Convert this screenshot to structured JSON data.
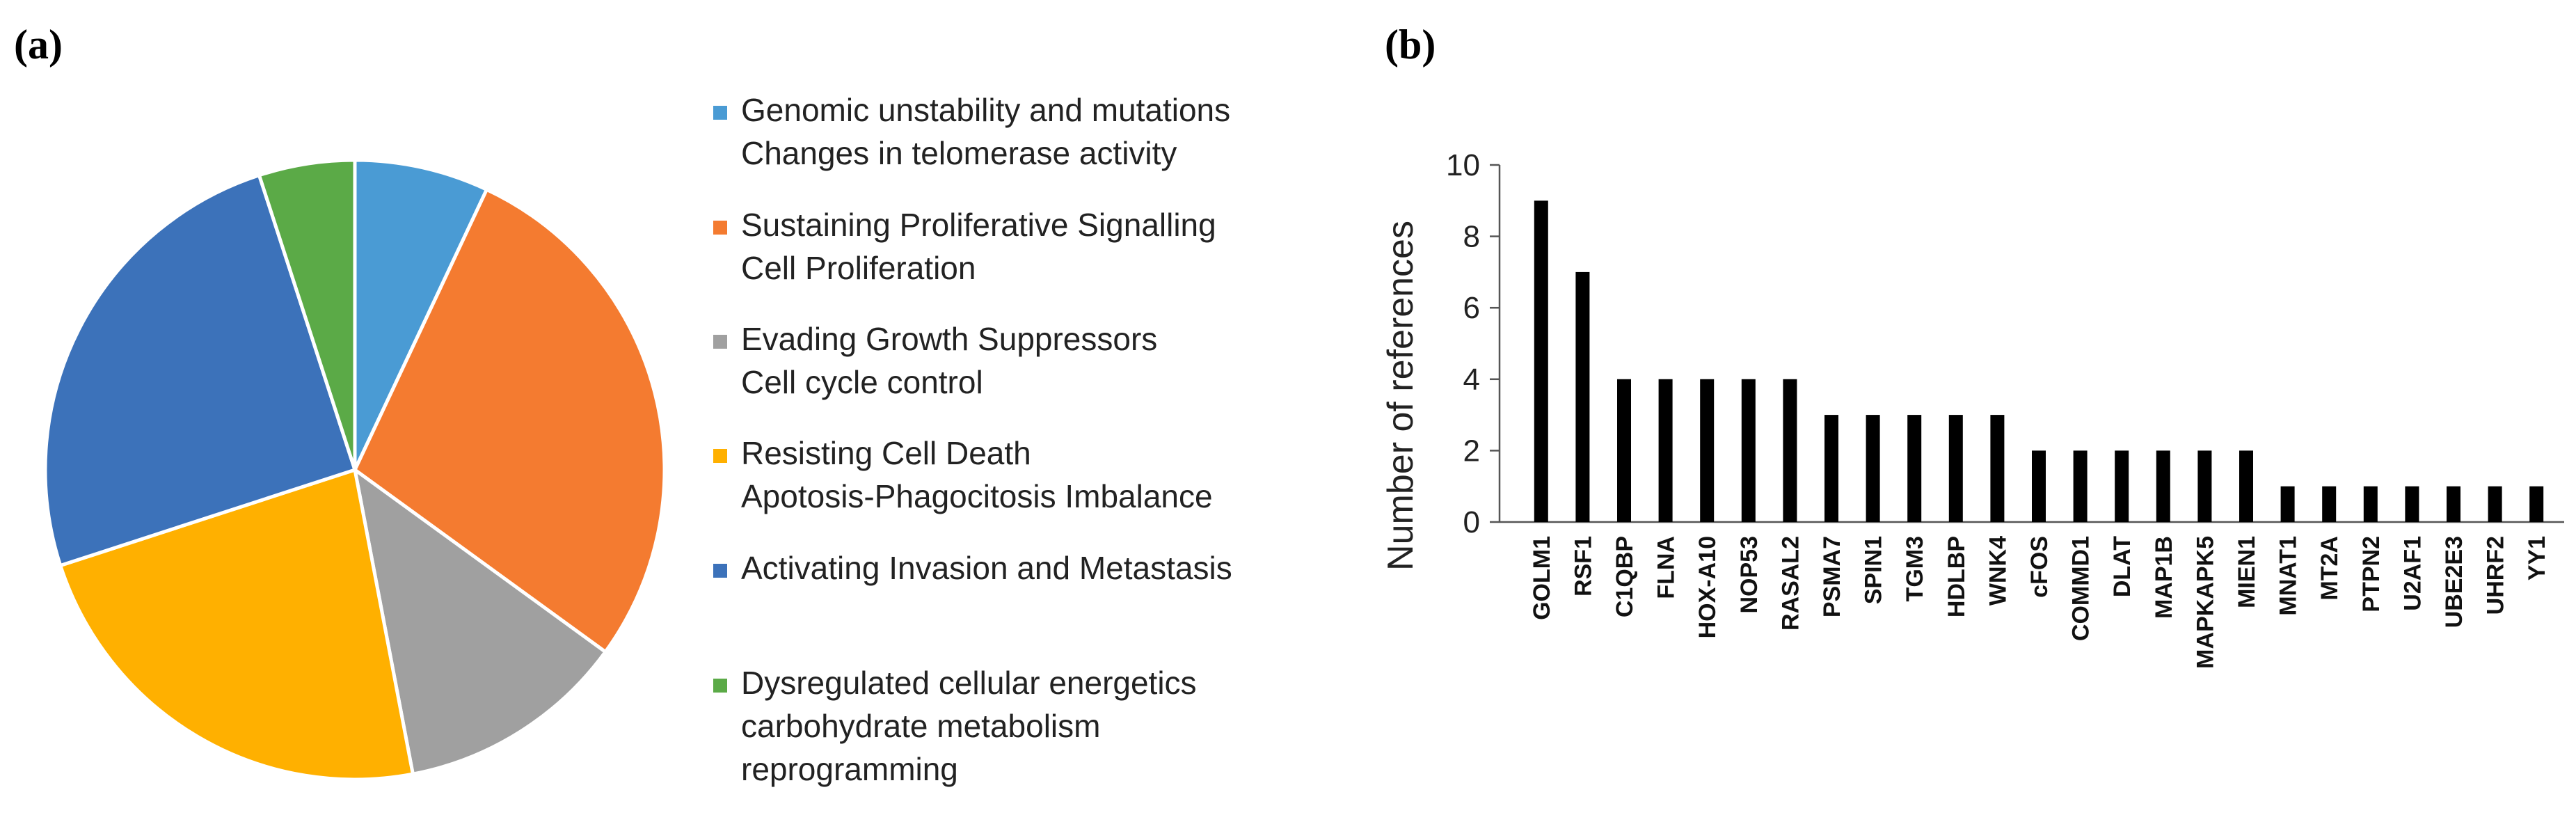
{
  "panels": {
    "a": "(a)",
    "b": "(b)"
  },
  "chart_data": [
    {
      "type": "pie",
      "panel": "(a)",
      "start_angle_deg": 0,
      "direction": "clockwise",
      "slices": [
        {
          "label_lines": [
            "Genomic unstability and mutations",
            "Changes in telomerase activity"
          ],
          "value": 7,
          "color": "#4A9BD4"
        },
        {
          "label_lines": [
            "Sustaining Proliferative Signalling",
            "Cell Proliferation"
          ],
          "value": 28,
          "color": "#F47B30"
        },
        {
          "label_lines": [
            "Evading Growth Suppressors",
            "Cell cycle control"
          ],
          "value": 12,
          "color": "#A0A0A0"
        },
        {
          "label_lines": [
            "Resisting Cell Death",
            "Apotosis-Phagocitosis Imbalance"
          ],
          "value": 23,
          "color": "#FFB000"
        },
        {
          "label_lines": [
            "Activating Invasion and Metastasis"
          ],
          "value": 25,
          "color": "#3C72BA"
        },
        {
          "label_lines": [
            "Dysregulated cellular energetics",
            "carbohydrate metabolism",
            "reprogramming"
          ],
          "value": 5,
          "color": "#5BAA47"
        }
      ],
      "legend_position": "right"
    },
    {
      "type": "bar",
      "panel": "(b)",
      "categories": [
        "GOLM1",
        "RSF1",
        "C1QBP",
        "FLNA",
        "HOX-A10",
        "NOP53",
        "RASAL2",
        "PSMA7",
        "SPIN1",
        "TGM3",
        "HDLBP",
        "WNK4",
        "cFOS",
        "COMMD1",
        "DLAT",
        "MAP1B",
        "MAPKAPK5",
        "MIEN1",
        "MNAT1",
        "MT2A",
        "PTPN2",
        "U2AF1",
        "UBE2E3",
        "UHRF2",
        "YY1"
      ],
      "values": [
        9,
        7,
        4,
        4,
        4,
        4,
        4,
        3,
        3,
        3,
        3,
        3,
        2,
        2,
        2,
        2,
        2,
        2,
        1,
        1,
        1,
        1,
        1,
        1,
        1
      ],
      "ylabel": "Number of references",
      "xlabel": "",
      "ylim": [
        0,
        10
      ],
      "yticks": [
        "0",
        "2",
        "4",
        "6",
        "8",
        "10"
      ],
      "bar_color": "#000000",
      "grid": false
    }
  ]
}
